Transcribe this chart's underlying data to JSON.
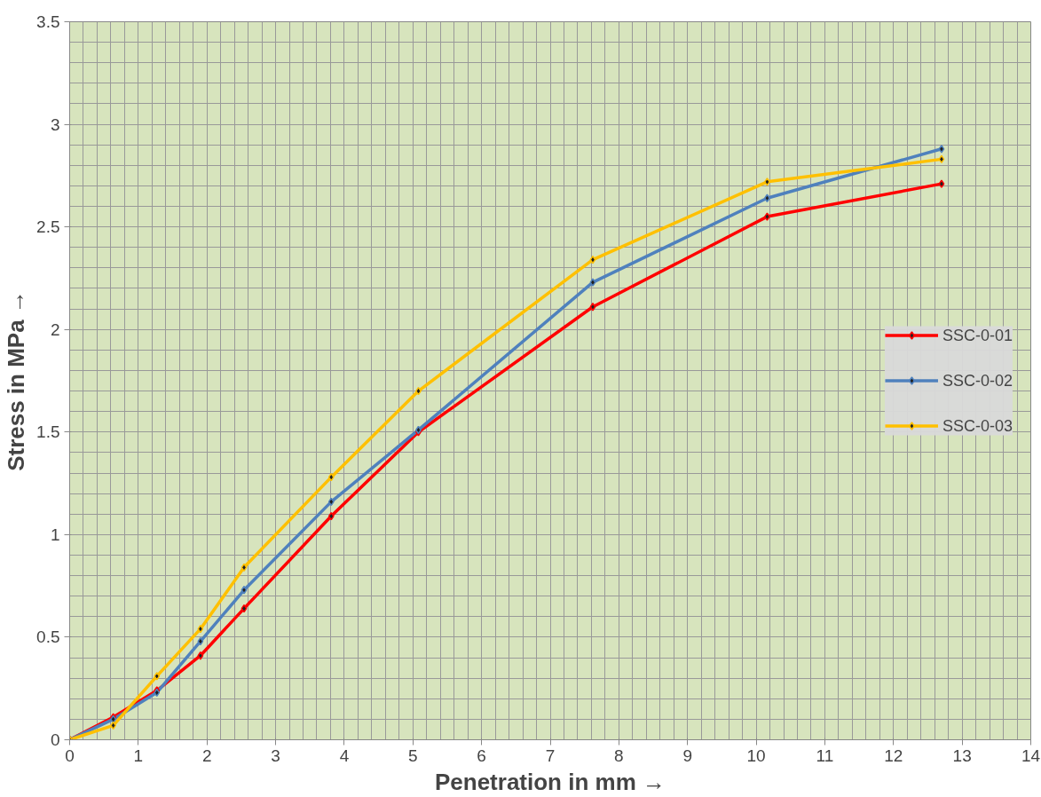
{
  "chart_data": {
    "type": "line",
    "xlabel": "Penetration in mm →",
    "ylabel": "Stress in MPa →",
    "x": [
      0,
      0.635,
      1.27,
      1.905,
      2.54,
      3.81,
      5.08,
      7.62,
      10.16,
      12.7
    ],
    "series": [
      {
        "name": "SSC-0-01",
        "color": "#ff0000",
        "values": [
          0,
          0.11,
          0.24,
          0.41,
          0.64,
          1.09,
          1.5,
          2.11,
          2.55,
          2.71
        ]
      },
      {
        "name": "SSC-0-02",
        "color": "#4f81bd",
        "values": [
          0,
          0.1,
          0.23,
          0.48,
          0.73,
          1.16,
          1.51,
          2.23,
          2.64,
          2.88
        ]
      },
      {
        "name": "SSC-0-03",
        "color": "#ffc000",
        "values": [
          0,
          0.07,
          0.31,
          0.54,
          0.84,
          1.28,
          1.7,
          2.34,
          2.72,
          2.83
        ]
      }
    ],
    "xlim": [
      0,
      14
    ],
    "ylim": [
      0,
      3.5
    ],
    "xticks": [
      0,
      1,
      2,
      3,
      4,
      5,
      6,
      7,
      8,
      9,
      10,
      11,
      12,
      13,
      14
    ],
    "yticks": [
      0,
      0.5,
      1,
      1.5,
      2,
      2.5,
      3,
      3.5
    ],
    "grid": true,
    "legend": "right",
    "marker": "diamond",
    "line_style": "solid"
  }
}
